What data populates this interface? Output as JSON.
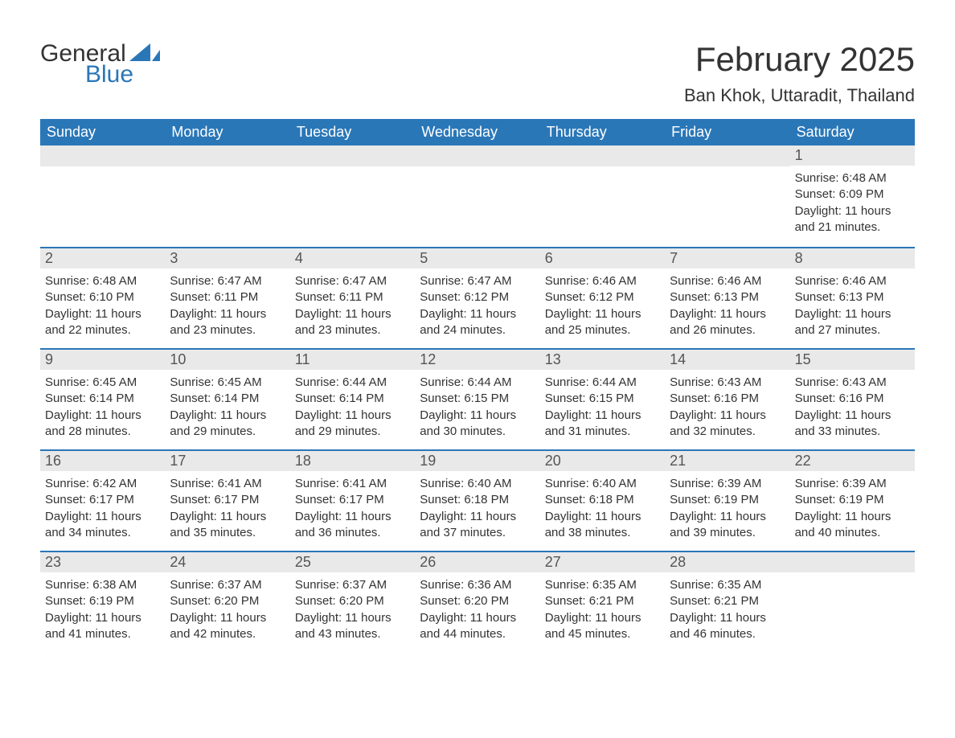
{
  "logo": {
    "text1": "General",
    "text2": "Blue",
    "flag_color": "#2a77b8"
  },
  "title": "February 2025",
  "location": "Ban Khok, Uttaradit, Thailand",
  "colors": {
    "header_bg": "#2a77b8",
    "header_text": "#ffffff",
    "daynum_bg": "#e9e9e9",
    "row_border": "#2a77b8",
    "body_text": "#333333",
    "background": "#ffffff"
  },
  "typography": {
    "title_fontsize": 42,
    "location_fontsize": 22,
    "dow_fontsize": 18,
    "daynum_fontsize": 18,
    "body_fontsize": 15,
    "logo_fontsize": 30
  },
  "layout": {
    "columns": 7,
    "rows": 5,
    "first_day_column": 6
  },
  "days_of_week": [
    "Sunday",
    "Monday",
    "Tuesday",
    "Wednesday",
    "Thursday",
    "Friday",
    "Saturday"
  ],
  "days": [
    {
      "n": 1,
      "sunrise": "6:48 AM",
      "sunset": "6:09 PM",
      "daylight": "11 hours and 21 minutes."
    },
    {
      "n": 2,
      "sunrise": "6:48 AM",
      "sunset": "6:10 PM",
      "daylight": "11 hours and 22 minutes."
    },
    {
      "n": 3,
      "sunrise": "6:47 AM",
      "sunset": "6:11 PM",
      "daylight": "11 hours and 23 minutes."
    },
    {
      "n": 4,
      "sunrise": "6:47 AM",
      "sunset": "6:11 PM",
      "daylight": "11 hours and 23 minutes."
    },
    {
      "n": 5,
      "sunrise": "6:47 AM",
      "sunset": "6:12 PM",
      "daylight": "11 hours and 24 minutes."
    },
    {
      "n": 6,
      "sunrise": "6:46 AM",
      "sunset": "6:12 PM",
      "daylight": "11 hours and 25 minutes."
    },
    {
      "n": 7,
      "sunrise": "6:46 AM",
      "sunset": "6:13 PM",
      "daylight": "11 hours and 26 minutes."
    },
    {
      "n": 8,
      "sunrise": "6:46 AM",
      "sunset": "6:13 PM",
      "daylight": "11 hours and 27 minutes."
    },
    {
      "n": 9,
      "sunrise": "6:45 AM",
      "sunset": "6:14 PM",
      "daylight": "11 hours and 28 minutes."
    },
    {
      "n": 10,
      "sunrise": "6:45 AM",
      "sunset": "6:14 PM",
      "daylight": "11 hours and 29 minutes."
    },
    {
      "n": 11,
      "sunrise": "6:44 AM",
      "sunset": "6:14 PM",
      "daylight": "11 hours and 29 minutes."
    },
    {
      "n": 12,
      "sunrise": "6:44 AM",
      "sunset": "6:15 PM",
      "daylight": "11 hours and 30 minutes."
    },
    {
      "n": 13,
      "sunrise": "6:44 AM",
      "sunset": "6:15 PM",
      "daylight": "11 hours and 31 minutes."
    },
    {
      "n": 14,
      "sunrise": "6:43 AM",
      "sunset": "6:16 PM",
      "daylight": "11 hours and 32 minutes."
    },
    {
      "n": 15,
      "sunrise": "6:43 AM",
      "sunset": "6:16 PM",
      "daylight": "11 hours and 33 minutes."
    },
    {
      "n": 16,
      "sunrise": "6:42 AM",
      "sunset": "6:17 PM",
      "daylight": "11 hours and 34 minutes."
    },
    {
      "n": 17,
      "sunrise": "6:41 AM",
      "sunset": "6:17 PM",
      "daylight": "11 hours and 35 minutes."
    },
    {
      "n": 18,
      "sunrise": "6:41 AM",
      "sunset": "6:17 PM",
      "daylight": "11 hours and 36 minutes."
    },
    {
      "n": 19,
      "sunrise": "6:40 AM",
      "sunset": "6:18 PM",
      "daylight": "11 hours and 37 minutes."
    },
    {
      "n": 20,
      "sunrise": "6:40 AM",
      "sunset": "6:18 PM",
      "daylight": "11 hours and 38 minutes."
    },
    {
      "n": 21,
      "sunrise": "6:39 AM",
      "sunset": "6:19 PM",
      "daylight": "11 hours and 39 minutes."
    },
    {
      "n": 22,
      "sunrise": "6:39 AM",
      "sunset": "6:19 PM",
      "daylight": "11 hours and 40 minutes."
    },
    {
      "n": 23,
      "sunrise": "6:38 AM",
      "sunset": "6:19 PM",
      "daylight": "11 hours and 41 minutes."
    },
    {
      "n": 24,
      "sunrise": "6:37 AM",
      "sunset": "6:20 PM",
      "daylight": "11 hours and 42 minutes."
    },
    {
      "n": 25,
      "sunrise": "6:37 AM",
      "sunset": "6:20 PM",
      "daylight": "11 hours and 43 minutes."
    },
    {
      "n": 26,
      "sunrise": "6:36 AM",
      "sunset": "6:20 PM",
      "daylight": "11 hours and 44 minutes."
    },
    {
      "n": 27,
      "sunrise": "6:35 AM",
      "sunset": "6:21 PM",
      "daylight": "11 hours and 45 minutes."
    },
    {
      "n": 28,
      "sunrise": "6:35 AM",
      "sunset": "6:21 PM",
      "daylight": "11 hours and 46 minutes."
    }
  ],
  "labels": {
    "sunrise": "Sunrise:",
    "sunset": "Sunset:",
    "daylight": "Daylight:"
  }
}
